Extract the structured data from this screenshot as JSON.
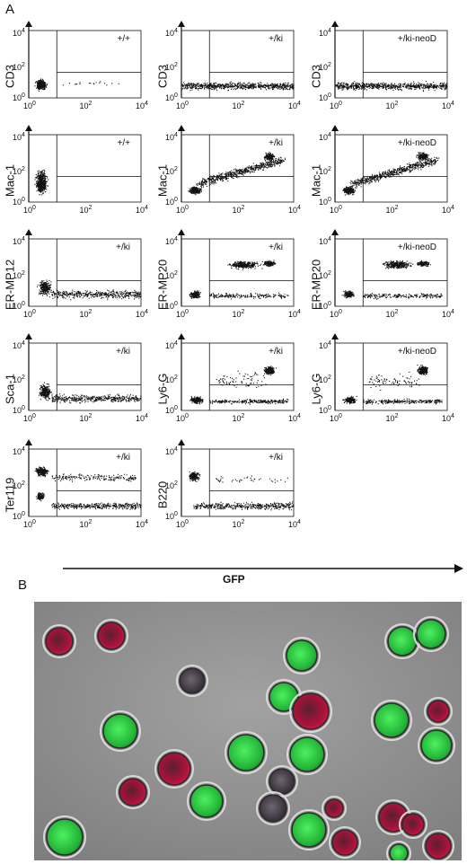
{
  "figure": {
    "panel_a_label": "A",
    "panel_b_label": "B",
    "x_axis_label": "GFP",
    "tick_base": "10",
    "tick_exponents": [
      "0",
      "2",
      "4"
    ]
  },
  "facs_panels": [
    {
      "id": "cd3-wt",
      "marker": "CD3",
      "genotype": "+/+",
      "row": 0,
      "col": 0,
      "pattern": "cd3-wt"
    },
    {
      "id": "cd3-ki",
      "marker": "CD3",
      "genotype": "+/ki",
      "row": 0,
      "col": 1,
      "pattern": "low-band"
    },
    {
      "id": "cd3-kineo",
      "marker": "CD3",
      "genotype": "+/ki-neoD",
      "row": 0,
      "col": 2,
      "pattern": "low-band"
    },
    {
      "id": "mac1-wt",
      "marker": "Mac-1",
      "genotype": "+/+",
      "row": 1,
      "col": 0,
      "pattern": "mac-wt"
    },
    {
      "id": "mac1-ki",
      "marker": "Mac-1",
      "genotype": "+/ki",
      "row": 1,
      "col": 1,
      "pattern": "rising"
    },
    {
      "id": "mac1-kineo",
      "marker": "Mac-1",
      "genotype": "+/ki-neoD",
      "row": 1,
      "col": 2,
      "pattern": "rising"
    },
    {
      "id": "ermp12-ki",
      "marker": "ER-MP12",
      "genotype": "+/ki",
      "row": 2,
      "col": 0,
      "pattern": "falling"
    },
    {
      "id": "ermp20-ki",
      "marker": "ER-MP20",
      "genotype": "+/ki",
      "row": 2,
      "col": 1,
      "pattern": "two-pop"
    },
    {
      "id": "ermp20-kineo",
      "marker": "ER-MP20",
      "genotype": "+/ki-neoD",
      "row": 2,
      "col": 2,
      "pattern": "two-pop"
    },
    {
      "id": "sca1-ki",
      "marker": "Sca-1",
      "genotype": "+/ki",
      "row": 3,
      "col": 0,
      "pattern": "falling"
    },
    {
      "id": "ly6g-ki",
      "marker": "Ly6-G",
      "genotype": "+/ki",
      "row": 3,
      "col": 1,
      "pattern": "hi-cluster"
    },
    {
      "id": "ly6g-kineo",
      "marker": "Ly6-G",
      "genotype": "+/ki-neoD",
      "row": 3,
      "col": 2,
      "pattern": "hi-cluster"
    },
    {
      "id": "ter119-ki",
      "marker": "Ter119",
      "genotype": "+/ki",
      "row": 4,
      "col": 0,
      "pattern": "ter"
    },
    {
      "id": "b220-ki",
      "marker": "B220",
      "genotype": "+/ki",
      "row": 4,
      "col": 1,
      "pattern": "b220"
    }
  ],
  "colors": {
    "dots": "#111111",
    "gfp_cell": "#35d04a",
    "red_cell": "#b8143a",
    "dark_cell": "#4a4048",
    "micro_bg": "#8e8e8e"
  }
}
